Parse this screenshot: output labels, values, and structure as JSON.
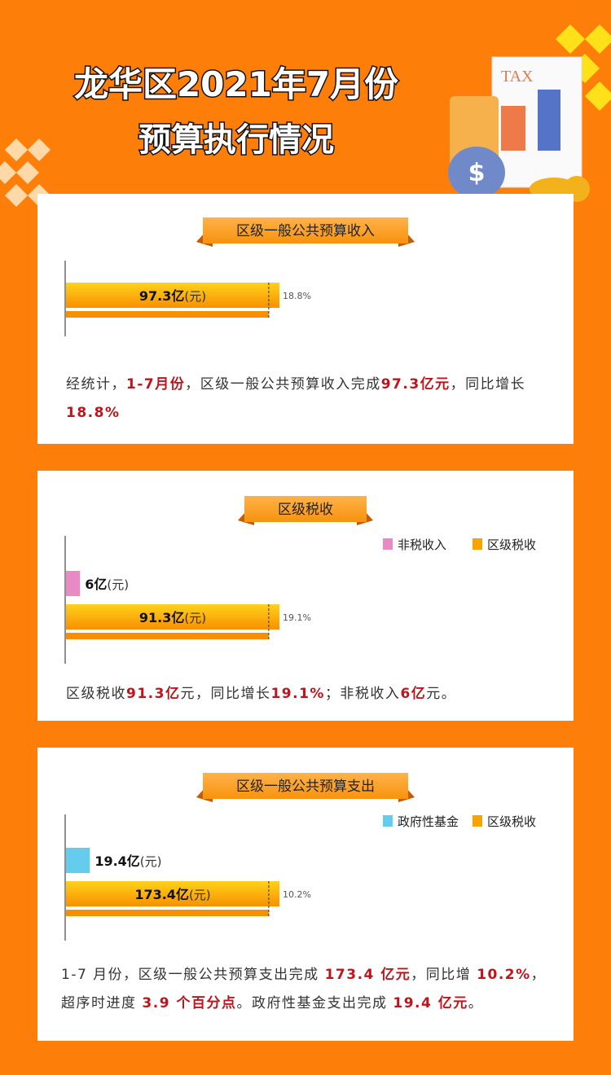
{
  "title": "龙华区2021年7月份",
  "subtitle": "预算执行情况",
  "chart_data": [
    {
      "type": "bar",
      "title": "区级一般公共预算收入",
      "values": [
        97.3
      ],
      "value_labels": [
        "97.3亿"
      ],
      "color": "#f7a400",
      "unit": "(元)",
      "annotation": "18.8%",
      "description": [
        "经统计，",
        "1-7月份",
        "，区级一般公共预算收入完成",
        "97.3亿元",
        "，同比增长",
        "18.8%"
      ]
    },
    {
      "type": "bar",
      "title": "区级税收",
      "unit": "(元)",
      "annotation": "19.1%",
      "series": [
        {
          "name": "非税收入",
          "color": "#e88bc4",
          "values": [
            6
          ],
          "value_labels": [
            "6亿"
          ]
        },
        {
          "name": "区级税收",
          "color": "#f7a400",
          "values": [
            91.3
          ],
          "value_labels": [
            "91.3亿"
          ]
        }
      ],
      "description": [
        "区级税收",
        "91.3亿",
        "元，同比增长",
        "19.1%",
        "；非税收入",
        "6亿",
        "元。"
      ]
    },
    {
      "type": "bar",
      "title": "区级一般公共预算支出",
      "unit": "(元)",
      "annotation": "10.2%",
      "series": [
        {
          "name": "政府性基金",
          "color": "#66ccee",
          "values": [
            19.4
          ],
          "value_labels": [
            "19.4亿"
          ]
        },
        {
          "name": "区级税收",
          "color": "#f7a400",
          "values": [
            173.4
          ],
          "value_labels": [
            "173.4亿"
          ]
        }
      ],
      "description": [
        "1-7 月份，区级一般公共预算支出完成 ",
        "173.4 亿元",
        "，同比增 ",
        "10.2%",
        "，超序时进度 ",
        "3.9 个百分点",
        "。政府性基金支出完成 ",
        "19.4 亿元",
        "。"
      ]
    }
  ]
}
